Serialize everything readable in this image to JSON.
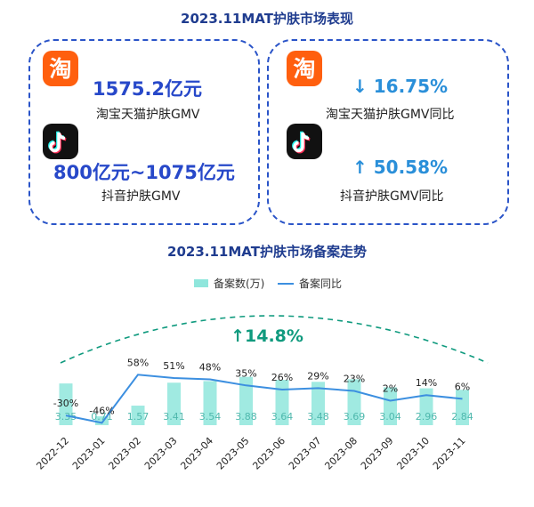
{
  "header": {
    "title": "2023.11MAT护肤市场表现"
  },
  "left_panel": {
    "taobao_value": "1575.2亿元",
    "taobao_label": "淘宝天猫护肤GMV",
    "douyin_value": "800亿元~1075亿元",
    "douyin_label": "抖音护肤GMV"
  },
  "right_panel": {
    "taobao_arrow": "↓",
    "taobao_change": "16.75%",
    "taobao_label": "淘宝天猫护肤GMV同比",
    "douyin_arrow": "↑",
    "douyin_change": "50.58%",
    "douyin_label": "抖音护肤GMV同比"
  },
  "icons": {
    "taobao": "taobao-logo-icon",
    "taobao_glyph": "淘",
    "douyin": "douyin-logo-icon"
  },
  "colors": {
    "title": "#1f3c8f",
    "panel_border": "#2a54c8",
    "value_blue": "#2748c9",
    "stat_blue": "#2a8fd9",
    "bar": "#8fe6dc",
    "line": "#3c8fe0",
    "highlight_green": "#0f9a7e",
    "taobao_orange": "#ff5f0e",
    "douyin_black": "#111111"
  },
  "chart_data": {
    "type": "bar",
    "title": "2023.11MAT护肤市场备案走势",
    "categories": [
      "2022-12",
      "2023-01",
      "2023-02",
      "2023-03",
      "2023-04",
      "2023-05",
      "2023-06",
      "2023-07",
      "2023-08",
      "2023-09",
      "2023-10",
      "2023-11"
    ],
    "series": [
      {
        "name": "备案数(万)",
        "kind": "bar",
        "values": [
          3.35,
          0.71,
          1.57,
          3.41,
          3.54,
          3.88,
          3.64,
          3.48,
          3.69,
          3.04,
          2.96,
          2.84
        ]
      },
      {
        "name": "备案同比",
        "kind": "line",
        "values": [
          -30,
          -46,
          58,
          51,
          48,
          35,
          26,
          29,
          23,
          2,
          14,
          6
        ],
        "labels": [
          "-30%",
          "-46%",
          "58%",
          "51%",
          "48%",
          "35%",
          "26%",
          "29%",
          "23%",
          "2%",
          "14%",
          "6%"
        ]
      }
    ],
    "annotation": {
      "arrow": "↑",
      "text": "14.8%"
    },
    "legend_position": "top",
    "grid": false
  }
}
